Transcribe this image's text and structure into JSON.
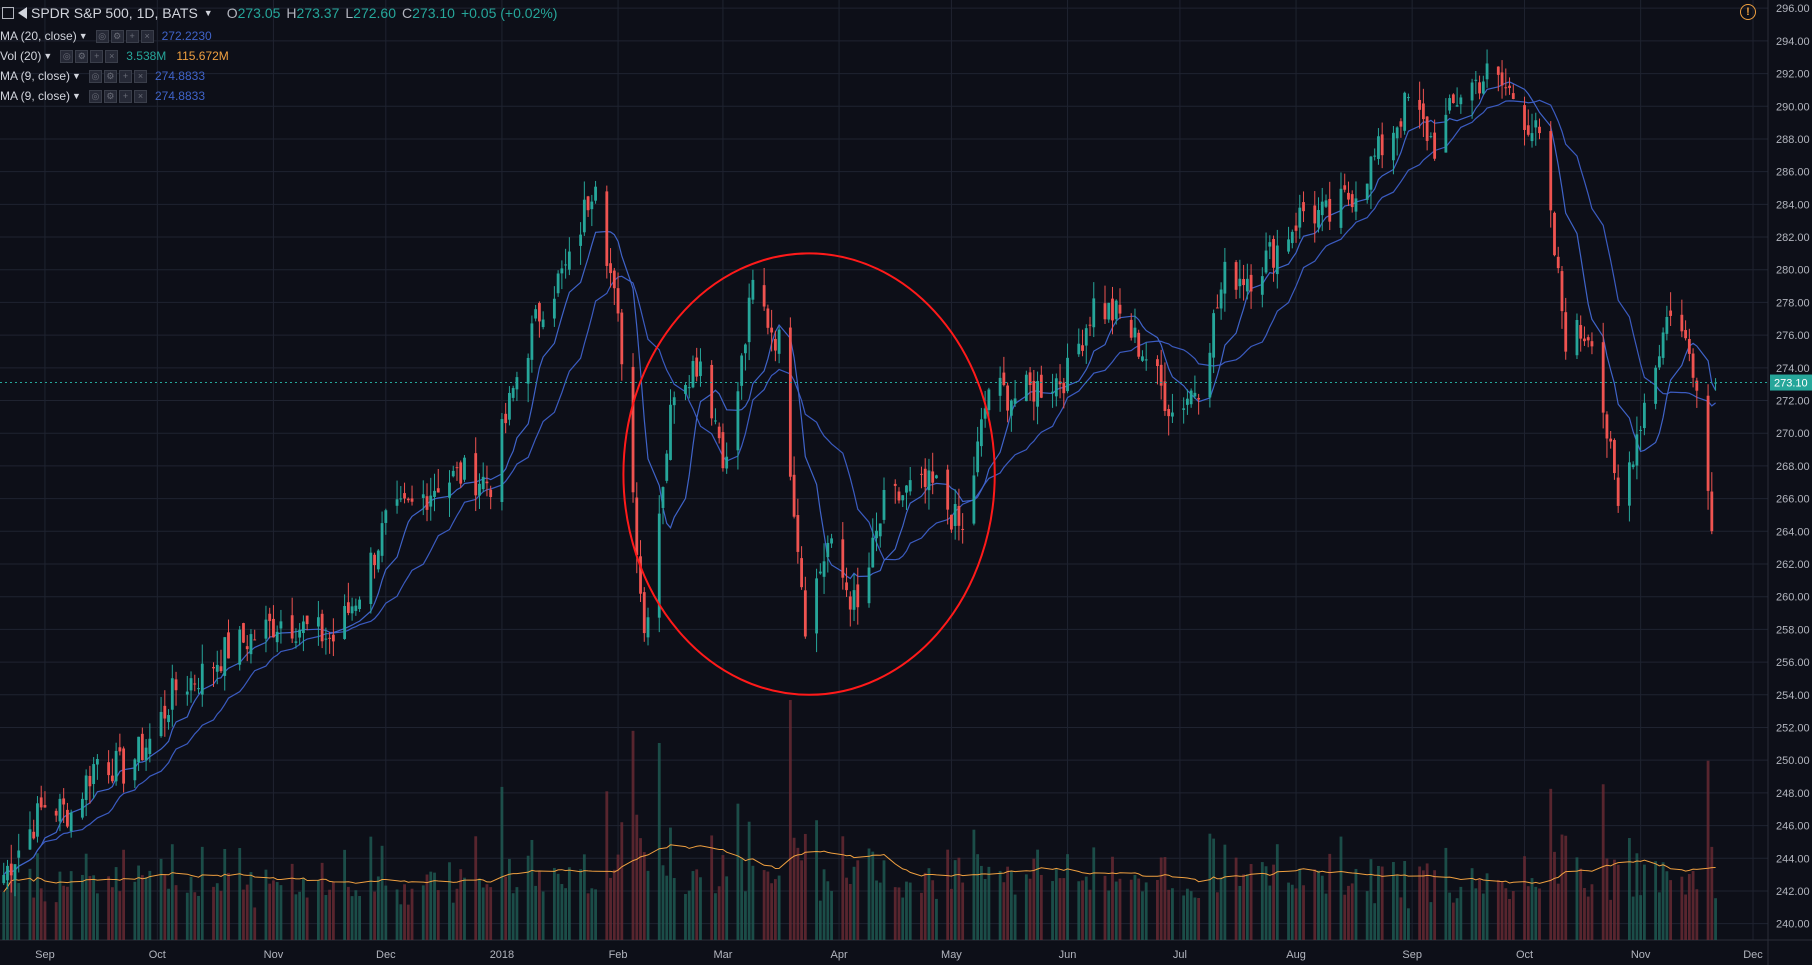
{
  "header": {
    "symbol": "SPDR S&P 500, 1D, BATS",
    "open_label": "O",
    "open": "273.05",
    "high_label": "H",
    "high": "273.37",
    "low_label": "L",
    "low": "272.60",
    "close_label": "C",
    "close": "273.10",
    "change": "+0.05 (+0.02%)"
  },
  "indicators": [
    {
      "name": "MA (20, close)",
      "value": "272.2230",
      "value_color": "#3f63c8"
    },
    {
      "name": "Vol (20)",
      "value": "3.538M",
      "value2": "115.672M"
    },
    {
      "name": "MA (9, close)",
      "value": "274.8833",
      "value_color": "#3f63c8"
    },
    {
      "name": "MA (9, close)",
      "value": "274.8833",
      "value_color": "#3f63c8"
    }
  ],
  "icons": {
    "alert": "alert-icon",
    "symbol": "flag-icon",
    "collapse": "collapse-square-icon"
  },
  "chart_data": {
    "type": "candlestick",
    "title": "SPDR S&P 500, 1D, BATS",
    "colors": {
      "up": "#26a69a",
      "down": "#ef5350",
      "ma_fast": "#3f63c8",
      "ma_slow": "#3b5bc0",
      "vol_ma": "#f0a040",
      "annotation": "#ff1a1a",
      "background": "#0d0f18",
      "grid": "#1f2330"
    },
    "y_axis": {
      "range": [
        239,
        296.5
      ],
      "ticks": [
        "240.00",
        "242.00",
        "244.00",
        "246.00",
        "248.00",
        "250.00",
        "252.00",
        "254.00",
        "256.00",
        "258.00",
        "260.00",
        "262.00",
        "264.00",
        "266.00",
        "268.00",
        "270.00",
        "272.00",
        "274.00",
        "276.00",
        "278.00",
        "280.00",
        "282.00",
        "284.00",
        "286.00",
        "288.00",
        "290.00",
        "292.00",
        "294.00",
        "296.00"
      ]
    },
    "x_axis": {
      "range": [
        "2017-08-20",
        "2018-12-05"
      ],
      "ticks": [
        {
          "label": "Sep",
          "date": "2017-09-01"
        },
        {
          "label": "Oct",
          "date": "2017-10-01"
        },
        {
          "label": "Nov",
          "date": "2017-11-01"
        },
        {
          "label": "Dec",
          "date": "2017-12-01"
        },
        {
          "label": "2018",
          "date": "2018-01-01"
        },
        {
          "label": "Feb",
          "date": "2018-02-01"
        },
        {
          "label": "Mar",
          "date": "2018-03-01"
        },
        {
          "label": "Apr",
          "date": "2018-04-01"
        },
        {
          "label": "May",
          "date": "2018-05-01"
        },
        {
          "label": "Jun",
          "date": "2018-06-01"
        },
        {
          "label": "Jul",
          "date": "2018-07-01"
        },
        {
          "label": "Aug",
          "date": "2018-08-01"
        },
        {
          "label": "Sep",
          "date": "2018-09-01"
        },
        {
          "label": "Oct",
          "date": "2018-10-01"
        },
        {
          "label": "Nov",
          "date": "2018-11-01"
        },
        {
          "label": "Dec",
          "date": "2018-12-01"
        }
      ]
    },
    "last_price": {
      "value": 273.1,
      "label": "273.10"
    },
    "series_close": [
      [
        "2017-08-21",
        243.0
      ],
      [
        "2017-08-25",
        244.6
      ],
      [
        "2017-09-01",
        247.3
      ],
      [
        "2017-09-08",
        246.8
      ],
      [
        "2017-09-15",
        250.1
      ],
      [
        "2017-09-22",
        249.4
      ],
      [
        "2017-09-29",
        251.2
      ],
      [
        "2017-10-06",
        254.4
      ],
      [
        "2017-10-13",
        255.3
      ],
      [
        "2017-10-20",
        256.8
      ],
      [
        "2017-10-27",
        257.6
      ],
      [
        "2017-11-03",
        258.6
      ],
      [
        "2017-11-10",
        258.0
      ],
      [
        "2017-11-17",
        257.4
      ],
      [
        "2017-11-24",
        260.4
      ],
      [
        "2017-12-01",
        264.5
      ],
      [
        "2017-12-08",
        265.5
      ],
      [
        "2017-12-15",
        267.0
      ],
      [
        "2017-12-22",
        267.5
      ],
      [
        "2017-12-29",
        267.0
      ],
      [
        "2018-01-05",
        273.5
      ],
      [
        "2018-01-12",
        278.0
      ],
      [
        "2018-01-19",
        280.3
      ],
      [
        "2018-01-26",
        286.0
      ],
      [
        "2018-02-02",
        275.0
      ],
      [
        "2018-02-08",
        257.8
      ],
      [
        "2018-02-16",
        273.0
      ],
      [
        "2018-02-23",
        274.6
      ],
      [
        "2018-03-02",
        268.0
      ],
      [
        "2018-03-09",
        278.9
      ],
      [
        "2018-03-16",
        275.5
      ],
      [
        "2018-03-23",
        258.6
      ],
      [
        "2018-03-29",
        263.2
      ],
      [
        "2018-04-06",
        259.0
      ],
      [
        "2018-04-13",
        265.5
      ],
      [
        "2018-04-20",
        266.5
      ],
      [
        "2018-04-27",
        266.7
      ],
      [
        "2018-05-04",
        263.8
      ],
      [
        "2018-05-11",
        272.8
      ],
      [
        "2018-05-18",
        272.2
      ],
      [
        "2018-05-25",
        272.9
      ],
      [
        "2018-06-01",
        273.6
      ],
      [
        "2018-06-08",
        277.9
      ],
      [
        "2018-06-15",
        277.1
      ],
      [
        "2018-06-22",
        274.7
      ],
      [
        "2018-06-29",
        271.3
      ],
      [
        "2018-07-06",
        273.1
      ],
      [
        "2018-07-13",
        279.6
      ],
      [
        "2018-07-20",
        279.7
      ],
      [
        "2018-07-27",
        281.4
      ],
      [
        "2018-08-03",
        283.6
      ],
      [
        "2018-08-10",
        283.2
      ],
      [
        "2018-08-17",
        285.0
      ],
      [
        "2018-08-24",
        287.5
      ],
      [
        "2018-08-31",
        290.3
      ],
      [
        "2018-09-07",
        287.6
      ],
      [
        "2018-09-14",
        290.9
      ],
      [
        "2018-09-21",
        291.9
      ],
      [
        "2018-09-28",
        290.7
      ],
      [
        "2018-10-05",
        287.8
      ],
      [
        "2018-10-12",
        275.9
      ],
      [
        "2018-10-19",
        276.3
      ],
      [
        "2018-10-26",
        265.3
      ],
      [
        "2018-11-02",
        271.9
      ],
      [
        "2018-11-09",
        277.8
      ],
      [
        "2018-11-16",
        273.7
      ],
      [
        "2018-11-20",
        264.1
      ],
      [
        "2018-11-21",
        273.1
      ]
    ],
    "volume_ma_level": {
      "typical": 115.672,
      "unit": "M"
    }
  }
}
